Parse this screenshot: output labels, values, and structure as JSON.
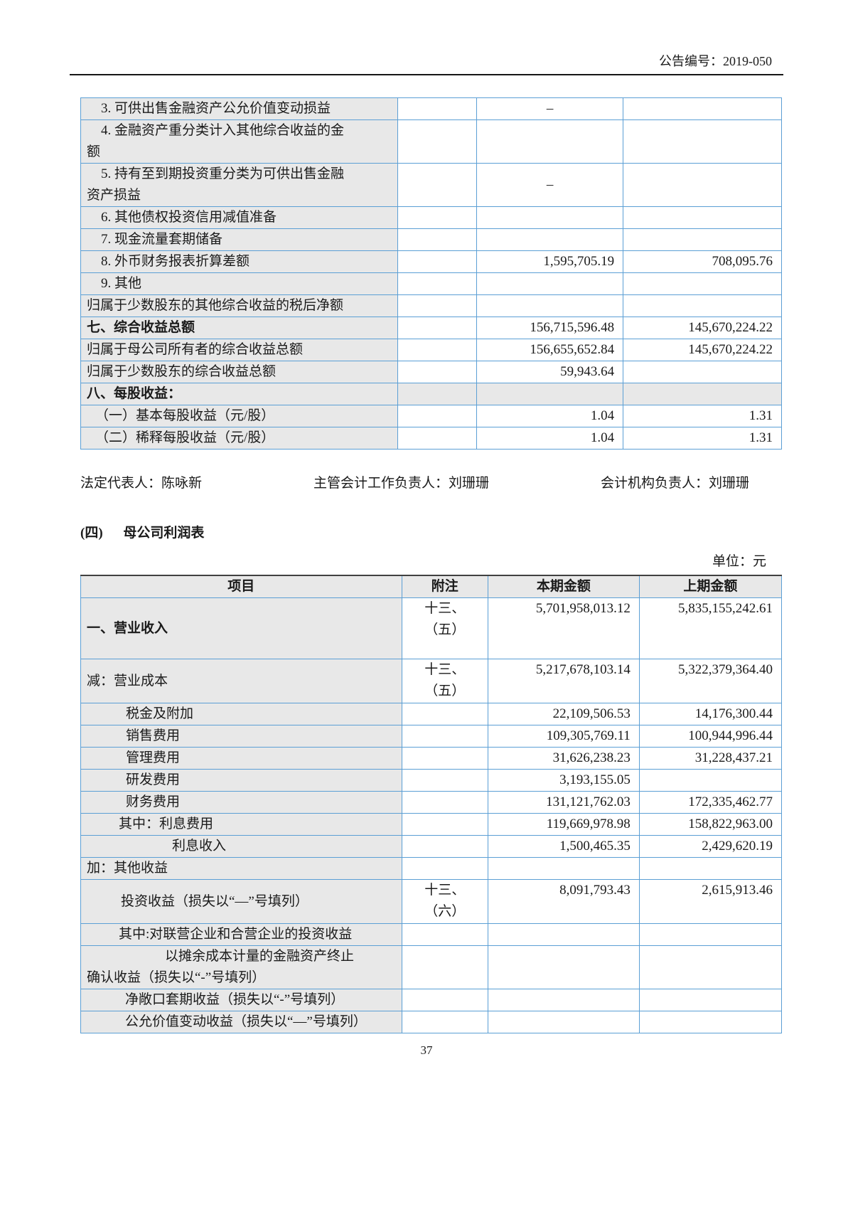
{
  "header": {
    "announcement_no": "公告编号：2019-050"
  },
  "footer": {
    "page_number": "37"
  },
  "signatures": {
    "legal_rep": "法定代表人：陈咏新",
    "accounting_head": "主管会计工作负责人：刘珊珊",
    "accounting_org_head": "会计机构负责人：刘珊珊"
  },
  "section": {
    "index": "(四)",
    "title": "母公司利润表",
    "unit": "单位：元"
  },
  "colors": {
    "table_border_blue": "#5b9fd5",
    "cell_gray": "#e8e8e8",
    "header_rule_black": "#161616",
    "text": "#1a1a1a"
  },
  "tables": [
    {
      "name": "comprehensive-income-continued",
      "rows": [
        {
          "label": "3. 可供出售金融资产公允价值变动损益",
          "indent": 20,
          "note": "",
          "current": "–",
          "prior": ""
        },
        {
          "label": "4. 金融资产重分类计入其他综合收益的金\n额",
          "indent": 20,
          "note": "",
          "current": "",
          "prior": ""
        },
        {
          "label": "5. 持有至到期投资重分类为可供出售金融\n资产损益",
          "indent": 20,
          "note": "",
          "current": "–",
          "prior": ""
        },
        {
          "label": "6. 其他债权投资信用减值准备",
          "indent": 20,
          "note": "",
          "current": "",
          "prior": ""
        },
        {
          "label": "7. 现金流量套期储备",
          "indent": 20,
          "note": "",
          "current": "",
          "prior": ""
        },
        {
          "label": "8. 外币财务报表折算差额",
          "indent": 20,
          "note": "",
          "current": "1,595,705.19",
          "prior": "708,095.76"
        },
        {
          "label": "9. 其他",
          "indent": 20,
          "note": "",
          "current": "",
          "prior": ""
        },
        {
          "label": "归属于少数股东的其他综合收益的税后净额",
          "note": "",
          "current": "",
          "prior": ""
        },
        {
          "label": "七、综合收益总额",
          "bold": true,
          "note": "",
          "current": "156,715,596.48",
          "prior": "145,670,224.22"
        },
        {
          "label": "归属于母公司所有者的综合收益总额",
          "note": "",
          "current": "156,655,652.84",
          "prior": "145,670,224.22"
        },
        {
          "label": "归属于少数股东的综合收益总额",
          "note": "",
          "current": "59,943.64",
          "prior": ""
        },
        {
          "label": "八、每股收益：",
          "bold": true,
          "gray": true,
          "note": "",
          "current": "",
          "prior": ""
        },
        {
          "label": "（一）基本每股收益（元/股）",
          "indent": 12,
          "note": "",
          "current": "1.04",
          "prior": "1.31"
        },
        {
          "label": "（二）稀释每股收益（元/股）",
          "indent": 12,
          "note": "",
          "current": "1.04",
          "prior": "1.31"
        }
      ]
    },
    {
      "name": "parent-company-income-statement",
      "headers": [
        "项目",
        "附注",
        "本期金额",
        "上期金额"
      ],
      "rows": [
        {
          "label": "一、营业收入",
          "bold": true,
          "minh": 86,
          "note": "十三、\n（五）",
          "current": "5,701,958,013.12",
          "prior": "5,835,155,242.61"
        },
        {
          "label": "减：营业成本",
          "minh": 62,
          "note": "十三、\n（五）",
          "current": "5,217,678,103.14",
          "prior": "5,322,379,364.40"
        },
        {
          "label": "税金及附加",
          "indent": 55,
          "note": "",
          "current": "22,109,506.53",
          "prior": "14,176,300.44"
        },
        {
          "label": "销售费用",
          "indent": 55,
          "note": "",
          "current": "109,305,769.11",
          "prior": "100,944,996.44"
        },
        {
          "label": "管理费用",
          "indent": 55,
          "note": "",
          "current": "31,626,238.23",
          "prior": "31,228,437.21"
        },
        {
          "label": "研发费用",
          "indent": 55,
          "note": "",
          "current": "3,193,155.05",
          "prior": ""
        },
        {
          "label": "财务费用",
          "indent": 55,
          "note": "",
          "current": "131,121,762.03",
          "prior": "172,335,462.77"
        },
        {
          "label": "其中：利息费用",
          "indent": 45,
          "note": "",
          "current": "119,669,978.98",
          "prior": "158,822,963.00"
        },
        {
          "label": "利息收入",
          "indent": 120,
          "note": "",
          "current": "1,500,465.35",
          "prior": "2,429,620.19"
        },
        {
          "label": "加：其他收益",
          "note": "",
          "current": "",
          "prior": ""
        },
        {
          "label": "投资收益（损失以“—”号填列）",
          "indent": 48,
          "minh": 62,
          "note": "十三、\n（六）",
          "current": "8,091,793.43",
          "prior": "2,615,913.46"
        },
        {
          "label": "其中:对联营企业和合营企业的投资收益",
          "indent": 45,
          "note": "",
          "current": "",
          "prior": ""
        },
        {
          "label": "以摊余成本计量的金融资产终止\n确认收益（损失以“-”号填列）",
          "indent": 110,
          "note": "",
          "current": "",
          "prior": ""
        },
        {
          "label": "净敞口套期收益（损失以“-”号填列）",
          "indent": 54,
          "note": "",
          "current": "",
          "prior": ""
        },
        {
          "label": "公允价值变动收益（损失以“—”号填列）",
          "indent": 54,
          "note": "",
          "current": "",
          "prior": ""
        }
      ]
    }
  ]
}
